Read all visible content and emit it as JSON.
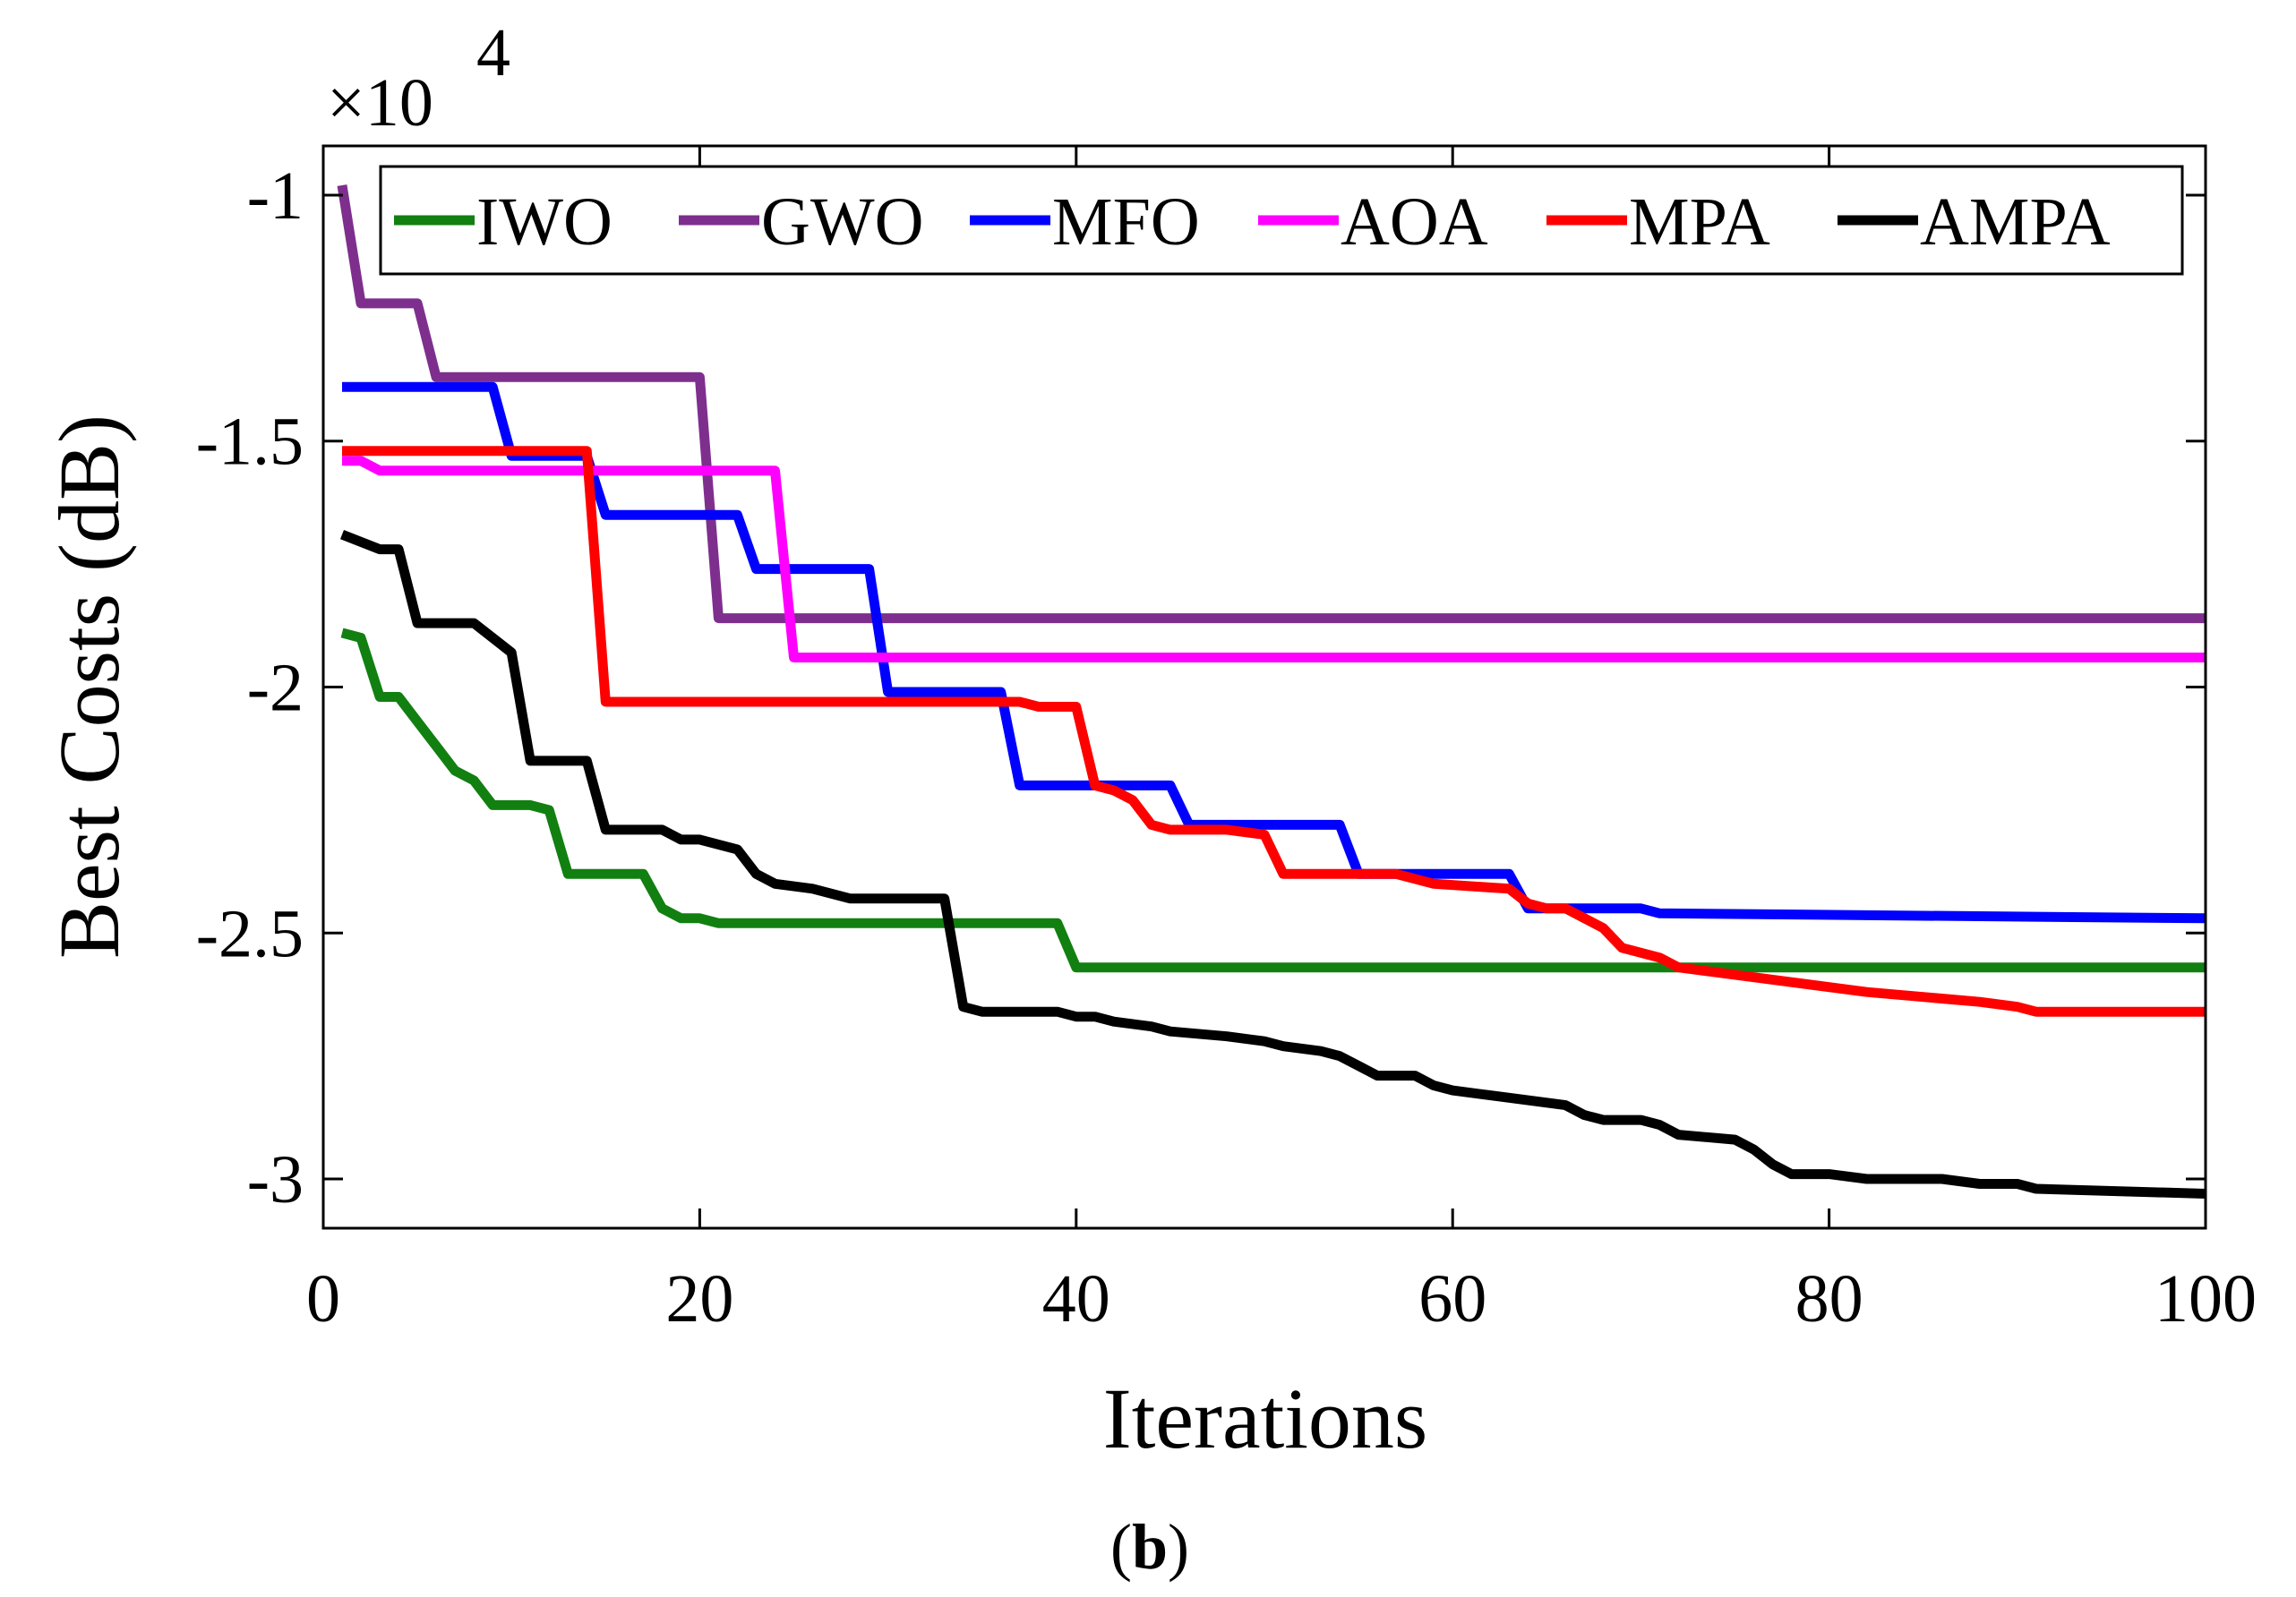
{
  "chart_data": {
    "type": "line",
    "xlabel": "Iterations",
    "ylabel": "Best Costs (dB)",
    "y_exponent_base": "×10",
    "y_exponent_power": "4",
    "xlim": [
      0,
      100
    ],
    "ylim": [
      -3.1,
      -0.9
    ],
    "xticks": [
      0,
      20,
      40,
      60,
      80,
      100
    ],
    "yticks": [
      -1,
      -1.5,
      -2,
      -2.5,
      -3
    ],
    "yticklabels": [
      "-1",
      "-1.5",
      "-2",
      "-2.5",
      "-3"
    ],
    "grid": false,
    "legend_position": "top",
    "panel_label_open": "(",
    "panel_label": "b",
    "panel_label_close": ")",
    "series": [
      {
        "name": "IWO",
        "color": "#118011",
        "points": [
          [
            1,
            -1.89
          ],
          [
            2,
            -1.9
          ],
          [
            3,
            -2.02
          ],
          [
            4,
            -2.02
          ],
          [
            5,
            -2.07
          ],
          [
            6,
            -2.12
          ],
          [
            7,
            -2.17
          ],
          [
            8,
            -2.19
          ],
          [
            9,
            -2.24
          ],
          [
            10,
            -2.24
          ],
          [
            11,
            -2.24
          ],
          [
            12,
            -2.25
          ],
          [
            13,
            -2.38
          ],
          [
            14,
            -2.38
          ],
          [
            15,
            -2.38
          ],
          [
            16,
            -2.38
          ],
          [
            17,
            -2.38
          ],
          [
            18,
            -2.45
          ],
          [
            19,
            -2.47
          ],
          [
            20,
            -2.47
          ],
          [
            21,
            -2.48
          ],
          [
            38,
            -2.48
          ],
          [
            39,
            -2.48
          ],
          [
            40,
            -2.57
          ],
          [
            100,
            -2.57
          ]
        ]
      },
      {
        "name": "GWO",
        "color": "#7E2F8E",
        "points": [
          [
            1,
            -0.98
          ],
          [
            2,
            -1.22
          ],
          [
            3,
            -1.22
          ],
          [
            4,
            -1.22
          ],
          [
            5,
            -1.22
          ],
          [
            6,
            -1.37
          ],
          [
            20,
            -1.37
          ],
          [
            21,
            -1.86
          ],
          [
            100,
            -1.86
          ]
        ]
      },
      {
        "name": "MFO",
        "color": "#0000FF",
        "points": [
          [
            1,
            -1.39
          ],
          [
            9,
            -1.39
          ],
          [
            10,
            -1.53
          ],
          [
            14,
            -1.53
          ],
          [
            15,
            -1.65
          ],
          [
            22,
            -1.65
          ],
          [
            23,
            -1.76
          ],
          [
            29,
            -1.76
          ],
          [
            30,
            -2.01
          ],
          [
            36,
            -2.01
          ],
          [
            37,
            -2.2
          ],
          [
            45,
            -2.2
          ],
          [
            46,
            -2.28
          ],
          [
            54,
            -2.28
          ],
          [
            55,
            -2.38
          ],
          [
            63,
            -2.38
          ],
          [
            64,
            -2.45
          ],
          [
            70,
            -2.45
          ],
          [
            71,
            -2.46
          ],
          [
            100,
            -2.47
          ]
        ]
      },
      {
        "name": "AOA",
        "color": "#FF00FF",
        "points": [
          [
            1,
            -1.54
          ],
          [
            2,
            -1.54
          ],
          [
            3,
            -1.56
          ],
          [
            24,
            -1.56
          ],
          [
            25,
            -1.94
          ],
          [
            100,
            -1.94
          ]
        ]
      },
      {
        "name": "MPA",
        "color": "#FF0000",
        "points": [
          [
            1,
            -1.52
          ],
          [
            14,
            -1.52
          ],
          [
            15,
            -2.03
          ],
          [
            37,
            -2.03
          ],
          [
            38,
            -2.04
          ],
          [
            40,
            -2.04
          ],
          [
            41,
            -2.2
          ],
          [
            42,
            -2.21
          ],
          [
            43,
            -2.23
          ],
          [
            44,
            -2.28
          ],
          [
            45,
            -2.29
          ],
          [
            48,
            -2.29
          ],
          [
            50,
            -2.3
          ],
          [
            51,
            -2.38
          ],
          [
            57,
            -2.38
          ],
          [
            58,
            -2.39
          ],
          [
            59,
            -2.4
          ],
          [
            63,
            -2.41
          ],
          [
            64,
            -2.44
          ],
          [
            65,
            -2.45
          ],
          [
            66,
            -2.45
          ],
          [
            67,
            -2.47
          ],
          [
            68,
            -2.49
          ],
          [
            69,
            -2.53
          ],
          [
            70,
            -2.54
          ],
          [
            71,
            -2.55
          ],
          [
            72,
            -2.57
          ],
          [
            74,
            -2.58
          ],
          [
            76,
            -2.59
          ],
          [
            78,
            -2.6
          ],
          [
            80,
            -2.61
          ],
          [
            82,
            -2.62
          ],
          [
            85,
            -2.63
          ],
          [
            88,
            -2.64
          ],
          [
            90,
            -2.65
          ],
          [
            91,
            -2.66
          ],
          [
            100,
            -2.66
          ]
        ]
      },
      {
        "name": "AMPA",
        "color": "#000000",
        "points": [
          [
            1,
            -1.69
          ],
          [
            3,
            -1.72
          ],
          [
            4,
            -1.72
          ],
          [
            5,
            -1.87
          ],
          [
            8,
            -1.87
          ],
          [
            9,
            -1.9
          ],
          [
            10,
            -1.93
          ],
          [
            11,
            -2.15
          ],
          [
            14,
            -2.15
          ],
          [
            15,
            -2.29
          ],
          [
            18,
            -2.29
          ],
          [
            19,
            -2.31
          ],
          [
            20,
            -2.31
          ],
          [
            22,
            -2.33
          ],
          [
            23,
            -2.38
          ],
          [
            24,
            -2.4
          ],
          [
            26,
            -2.41
          ],
          [
            27,
            -2.42
          ],
          [
            28,
            -2.43
          ],
          [
            33,
            -2.43
          ],
          [
            34,
            -2.65
          ],
          [
            35,
            -2.66
          ],
          [
            39,
            -2.66
          ],
          [
            40,
            -2.67
          ],
          [
            41,
            -2.67
          ],
          [
            42,
            -2.68
          ],
          [
            44,
            -2.69
          ],
          [
            45,
            -2.7
          ],
          [
            48,
            -2.71
          ],
          [
            50,
            -2.72
          ],
          [
            51,
            -2.73
          ],
          [
            53,
            -2.74
          ],
          [
            54,
            -2.75
          ],
          [
            55,
            -2.77
          ],
          [
            56,
            -2.79
          ],
          [
            58,
            -2.79
          ],
          [
            59,
            -2.81
          ],
          [
            60,
            -2.82
          ],
          [
            62,
            -2.83
          ],
          [
            64,
            -2.84
          ],
          [
            66,
            -2.85
          ],
          [
            67,
            -2.87
          ],
          [
            68,
            -2.88
          ],
          [
            70,
            -2.88
          ],
          [
            71,
            -2.89
          ],
          [
            72,
            -2.91
          ],
          [
            75,
            -2.92
          ],
          [
            76,
            -2.94
          ],
          [
            77,
            -2.97
          ],
          [
            78,
            -2.99
          ],
          [
            79,
            -2.99
          ],
          [
            80,
            -2.99
          ],
          [
            82,
            -3.0
          ],
          [
            86,
            -3.0
          ],
          [
            88,
            -3.01
          ],
          [
            90,
            -3.01
          ],
          [
            91,
            -3.02
          ],
          [
            100,
            -3.03
          ]
        ]
      }
    ]
  }
}
